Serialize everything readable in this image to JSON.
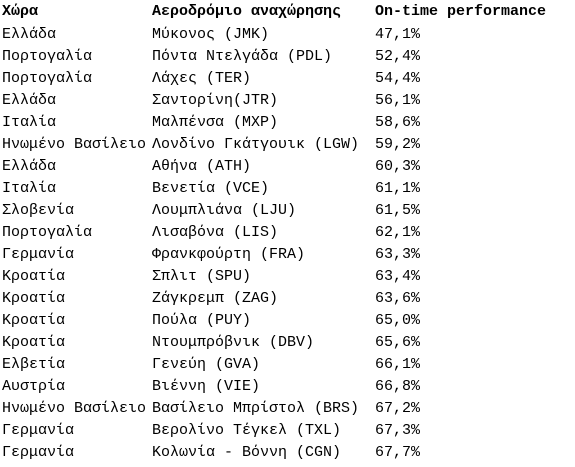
{
  "table": {
    "header": [
      "Χώρα",
      "Αεροδρόμιο αναχώρησης",
      "On-time performance"
    ],
    "rows": [
      [
        "Ελλάδα",
        "Μύκονος (JMK)",
        "47,1%"
      ],
      [
        "Πορτογαλία",
        "Πόντα Ντελγάδα (PDL)",
        "52,4%"
      ],
      [
        "Πορτογαλία",
        "Λάχες (TER)",
        "54,4%"
      ],
      [
        "Ελλάδα",
        "Σαντορίνη(JTR)",
        "56,1%"
      ],
      [
        "Ιταλία",
        "Μαλπένσα (MXP)",
        "58,6%"
      ],
      [
        "Ηνωμένο Βασίλειο",
        "Λονδίνο Γκάτγουικ (LGW)",
        "59,2%"
      ],
      [
        "Ελλάδα",
        "Αθήνα (ATH)",
        "60,3%"
      ],
      [
        "Ιταλία",
        "Βενετία (VCE)",
        "61,1%"
      ],
      [
        "Σλοβενία",
        "Λουμπλιάνα (LJU)",
        "61,5%"
      ],
      [
        "Πορτογαλία",
        "Λισαβόνα (LIS)",
        "62,1%"
      ],
      [
        "Γερμανία",
        "Φρανκφούρτη (FRA)",
        "63,3%"
      ],
      [
        "Κροατία",
        "Σπλιτ (SPU)",
        "63,4%"
      ],
      [
        "Κροατία",
        "Ζάγκρεμπ (ZAG)",
        "63,6%"
      ],
      [
        "Κροατία",
        "Πούλα (PUY)",
        "65,0%"
      ],
      [
        "Κροατία",
        "Ντουμπρόβνικ (DBV)",
        "65,6%"
      ],
      [
        "Ελβετία",
        "Γενεύη (GVA)",
        "66,1%"
      ],
      [
        "Αυστρία",
        "Βιέννη (VIE)",
        "66,8%"
      ],
      [
        "Ηνωμένο Βασίλειο",
        "Βασίλειο Μπρίστολ (BRS)",
        "67,2%"
      ],
      [
        "Γερμανία",
        "Βερολίνο Τέγκελ (TXL)",
        "67,3%"
      ],
      [
        "Γερμανία",
        "Κολωνία - Βόννη (CGN)",
        "67,7%"
      ]
    ]
  }
}
